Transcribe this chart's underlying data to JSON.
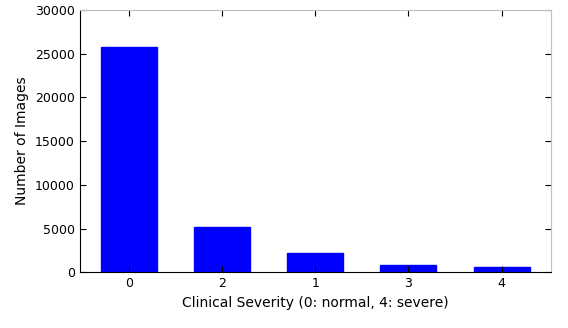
{
  "categories": [
    "0",
    "2",
    "1",
    "3",
    "4"
  ],
  "values": [
    25700,
    5200,
    2200,
    850,
    650
  ],
  "bar_color": "#0000ff",
  "bar_width": 0.6,
  "xlabel": "Clinical Severity (0: normal, 4: severe)",
  "ylabel": "Number of Images",
  "ylim": [
    0,
    30000
  ],
  "yticks": [
    0,
    5000,
    10000,
    15000,
    20000,
    25000,
    30000
  ],
  "xlabel_fontsize": 10,
  "ylabel_fontsize": 10,
  "tick_fontsize": 9,
  "background_color": "#ffffff",
  "top_spine_color": "#c0c0c0",
  "right_spine_color": "#c0c0c0"
}
